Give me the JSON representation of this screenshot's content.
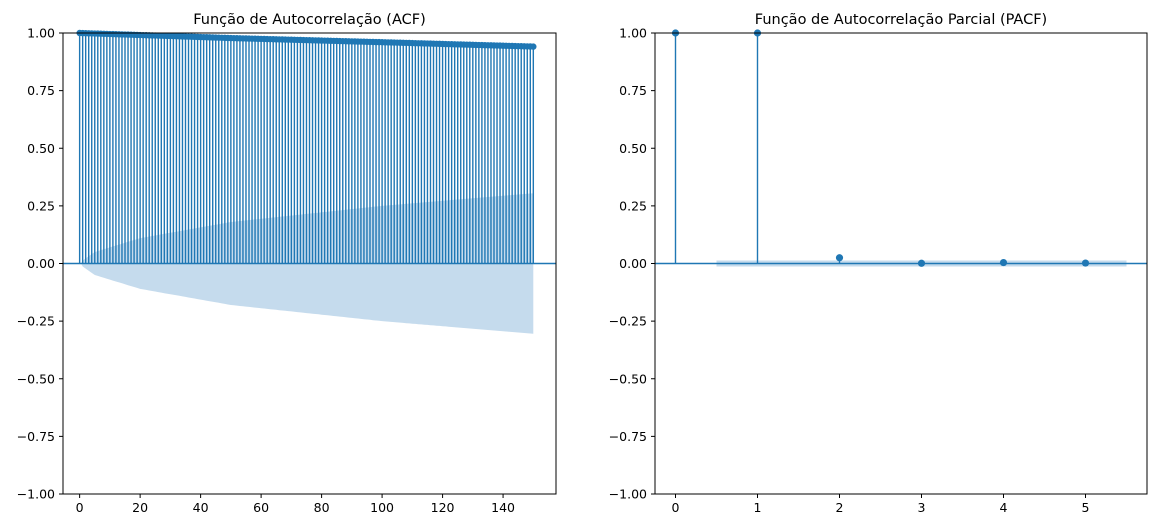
{
  "chart_data": [
    {
      "type": "stem",
      "title": "Função de Autocorrelação (ACF)",
      "xlabel": "",
      "ylabel": "",
      "xlim": [
        -5.5,
        157.5
      ],
      "ylim": [
        -1.0,
        1.0
      ],
      "xticks": [
        0,
        20,
        40,
        60,
        80,
        100,
        120,
        140
      ],
      "xtick_labels": [
        "0",
        "20",
        "40",
        "60",
        "80",
        "100",
        "120",
        "140"
      ],
      "yticks": [
        -1.0,
        -0.75,
        -0.5,
        -0.25,
        0.0,
        0.25,
        0.5,
        0.75,
        1.0
      ],
      "ytick_labels": [
        "−1.00",
        "−0.75",
        "−0.50",
        "−0.25",
        "0.00",
        "0.25",
        "0.50",
        "0.75",
        "1.00"
      ],
      "lags": {
        "start": 0,
        "end": 150
      },
      "acf_profile": {
        "lag": [
          0,
          1,
          50,
          100,
          150
        ],
        "value": [
          1.0,
          0.9995,
          0.978,
          0.96,
          0.941
        ]
      },
      "confint_profile": {
        "lag": [
          1,
          5,
          20,
          50,
          100,
          150
        ],
        "value": [
          0.013,
          0.05,
          0.11,
          0.18,
          0.25,
          0.305
        ]
      },
      "grid": false,
      "legend": "none",
      "colors": {
        "stem": "#1f77b4",
        "band": "#c5dbed"
      }
    },
    {
      "type": "stem",
      "title": "Função de Autocorrelação Parcial (PACF)",
      "xlabel": "",
      "ylabel": "",
      "xlim": [
        -0.25,
        5.75
      ],
      "ylim": [
        -1.0,
        1.0
      ],
      "xticks": [
        0,
        1,
        2,
        3,
        4,
        5
      ],
      "xtick_labels": [
        "0",
        "1",
        "2",
        "3",
        "4",
        "5"
      ],
      "yticks": [
        -1.0,
        -0.75,
        -0.5,
        -0.25,
        0.0,
        0.25,
        0.5,
        0.75,
        1.0
      ],
      "ytick_labels": [
        "−1.00",
        "−0.75",
        "−0.50",
        "−0.25",
        "0.00",
        "0.25",
        "0.50",
        "0.75",
        "1.00"
      ],
      "x": [
        0,
        1,
        2,
        3,
        4,
        5
      ],
      "values": [
        1.0,
        1.0,
        0.025,
        0.001,
        0.004,
        0.002
      ],
      "confint": {
        "x_start": 0.5,
        "x_end": 5.5,
        "value": 0.013
      },
      "grid": false,
      "legend": "none",
      "colors": {
        "stem": "#1f77b4",
        "band": "#c5dbed"
      }
    }
  ]
}
